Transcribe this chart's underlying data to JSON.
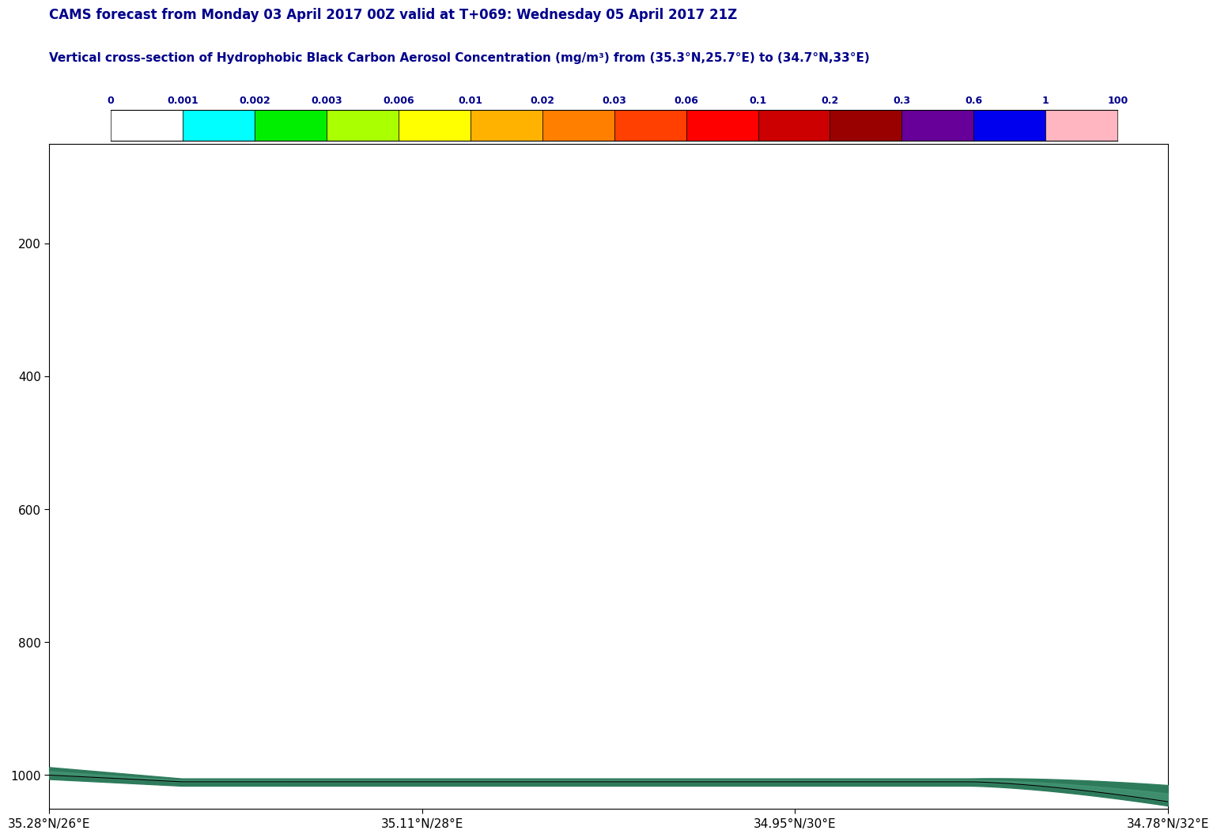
{
  "title1": "CAMS forecast from Monday 03 April 2017 00Z valid at T+069: Wednesday 05 April 2017 21Z",
  "title2": "Vertical cross-section of Hydrophobic Black Carbon Aerosol Concentration (mg/m³) from (35.3°N,25.7°E) to (34.7°N,33°E)",
  "title_color": "#00008B",
  "colorbar_labels": [
    "0",
    "0.001",
    "0.002",
    "0.003",
    "0.006",
    "0.01",
    "0.02",
    "0.03",
    "0.06",
    "0.1",
    "0.2",
    "0.3",
    "0.6",
    "1",
    "100"
  ],
  "colorbar_colors": [
    "#FFFFFF",
    "#00FFFF",
    "#00EE00",
    "#AAFF00",
    "#FFFF00",
    "#FFB300",
    "#FF8000",
    "#FF4000",
    "#FF0000",
    "#CC0000",
    "#990000",
    "#660099",
    "#0000EE",
    "#FFB6C1"
  ],
  "ylim": [
    1050,
    50
  ],
  "yticks": [
    200,
    400,
    600,
    800,
    1000
  ],
  "xtick_labels": [
    "35.28°N/26°E",
    "35.11°N/28°E",
    "34.95°N/30°E",
    "34.78°N/32°E"
  ],
  "fill_color_dark": "#2E7B5C",
  "fill_color_light": "#4A9B7A",
  "bg_color": "#FFFFFF"
}
